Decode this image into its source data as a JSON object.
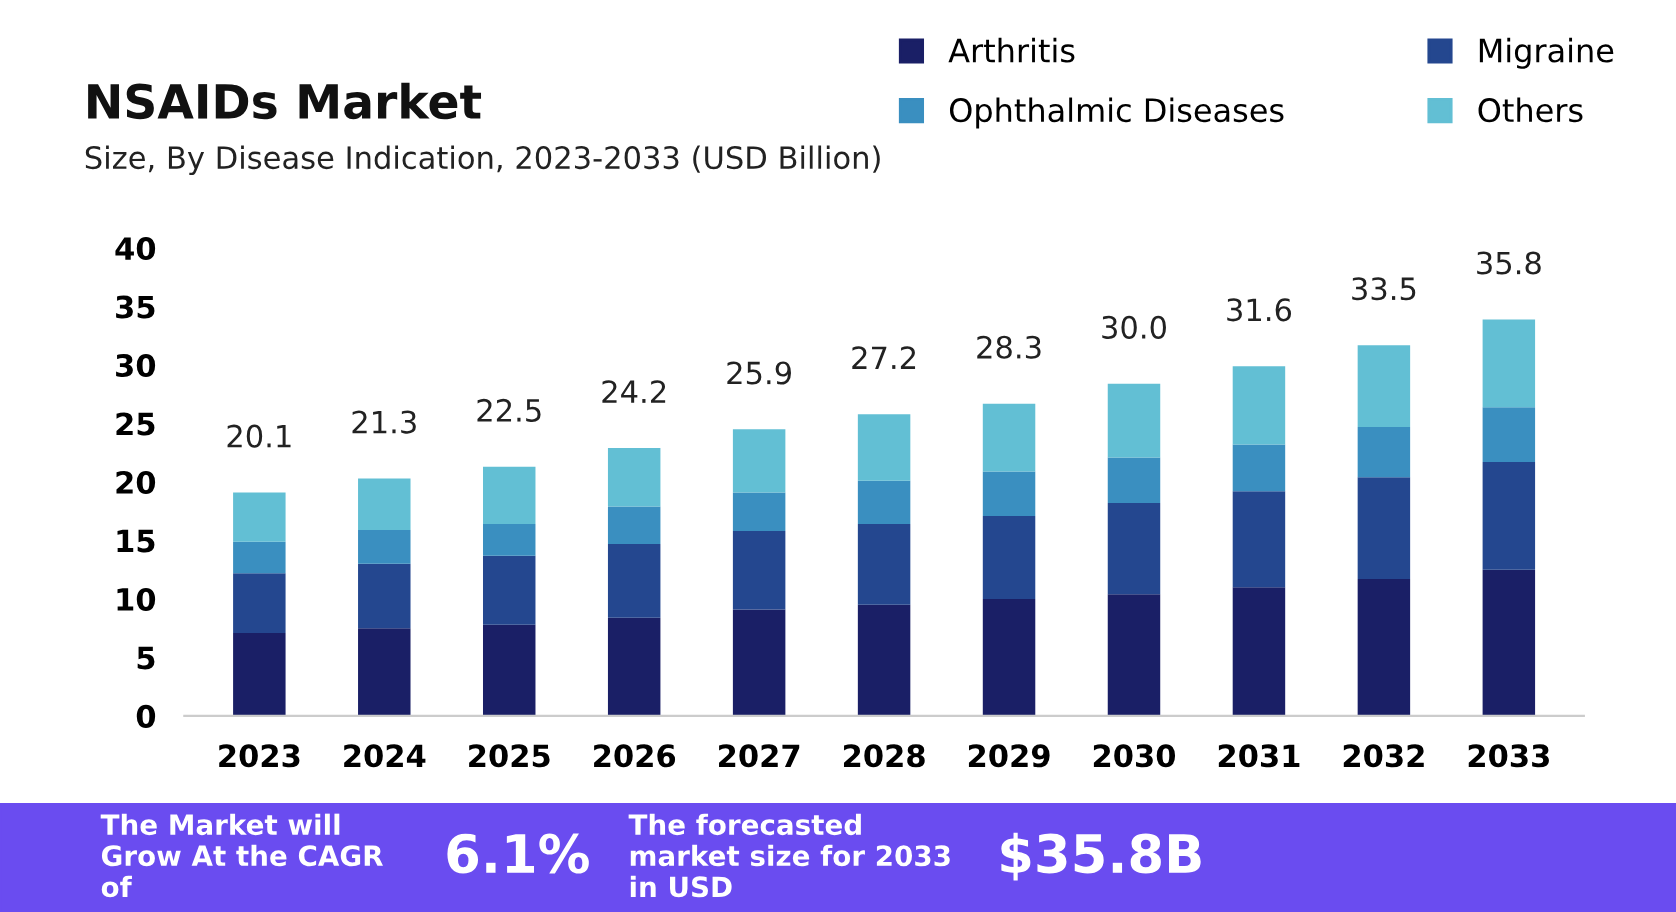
{
  "chart_data": {
    "type": "bar",
    "title": "NSAIDs Market",
    "subtitle": "Size, By Disease Indication, 2023-2033 (USD Billion)",
    "categories": [
      "2023",
      "2024",
      "2025",
      "2026",
      "2027",
      "2028",
      "2029",
      "2030",
      "2031",
      "2032",
      "2033"
    ],
    "stacked": true,
    "series": [
      {
        "name": "Arthritis",
        "color": "#1a1f66",
        "values": [
          7.1,
          7.5,
          7.8,
          8.4,
          9.1,
          9.5,
          10.0,
          10.4,
          11.0,
          11.7,
          12.5
        ]
      },
      {
        "name": "Migraine",
        "color": "#24478f",
        "values": [
          5.1,
          5.5,
          5.9,
          6.3,
          6.7,
          6.9,
          7.1,
          7.8,
          8.2,
          8.7,
          9.2
        ]
      },
      {
        "name": "Ophthalmic Diseases",
        "color": "#3a8fc0",
        "values": [
          2.7,
          2.9,
          2.7,
          3.2,
          3.3,
          3.7,
          3.8,
          3.9,
          4.0,
          4.3,
          4.7
        ]
      },
      {
        "name": "Others",
        "color": "#62bfd4",
        "values": [
          4.2,
          4.4,
          4.9,
          5.0,
          5.4,
          5.7,
          5.8,
          6.3,
          6.7,
          7.0,
          7.5
        ]
      }
    ],
    "ylim": [
      0,
      40
    ],
    "yticks": [
      0,
      5,
      10,
      15,
      20,
      25,
      30,
      35,
      40
    ],
    "grid": false,
    "legend": "top right",
    "annotations": [
      "The Market will Grow At the CAGR of",
      "6.1%",
      "The forecasted market size for 2033 in USD",
      "$35.8B",
      "20.1",
      "21.3",
      "22.5",
      "24.2",
      "25.9",
      "27.2",
      "28.3",
      "30.0",
      "31.6",
      "33.5",
      "35.8"
    ]
  }
}
